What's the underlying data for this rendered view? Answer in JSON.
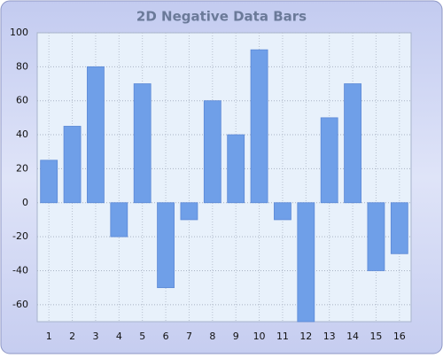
{
  "chart_data": {
    "type": "bar",
    "title": "2D Negative Data Bars",
    "categories": [
      "1",
      "2",
      "3",
      "4",
      "5",
      "6",
      "7",
      "8",
      "9",
      "10",
      "11",
      "12",
      "13",
      "14",
      "15",
      "16"
    ],
    "values": [
      25,
      45,
      80,
      -20,
      70,
      -50,
      -10,
      60,
      40,
      90,
      -10,
      -70,
      50,
      70,
      -40,
      -30
    ],
    "color": "#6f9fe8",
    "ylim": [
      -70,
      100
    ],
    "yticks": [
      100,
      80,
      60,
      40,
      20,
      0,
      -20,
      -40,
      -60
    ],
    "grid": true
  }
}
